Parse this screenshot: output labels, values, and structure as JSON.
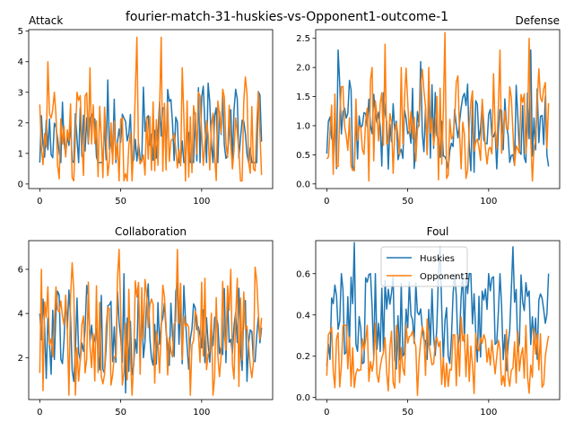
{
  "figure": {
    "suptitle": "fourier-match-31-huskies-vs-Opponent1-outcome-1"
  },
  "colors": {
    "huskies": "#1f77b4",
    "opponent": "#ff7f0e",
    "axis": "#000000",
    "legend_border": "#cccccc"
  },
  "legend": {
    "entries": [
      "Huskies",
      "Opponent1"
    ],
    "placement": "upper center of Foul panel"
  },
  "chart_data": [
    {
      "type": "line",
      "title": "Attack",
      "title_align": "left",
      "x_range": [
        0,
        137
      ],
      "ylim": [
        -0.15,
        5.05
      ],
      "xticks": [
        0,
        50,
        100
      ],
      "yticks": [
        0,
        1,
        2,
        3,
        4,
        5
      ],
      "series": [
        {
          "name": "Huskies",
          "envelope": {
            "base": 1.6,
            "amp": 0.8,
            "min": 0.7,
            "max": 3.5
          },
          "spikes": [
            [
              42,
              3.4
            ],
            [
              101,
              3.2
            ],
            [
              104,
              3.3
            ],
            [
              121,
              3.1
            ]
          ]
        },
        {
          "name": "Opponent1",
          "envelope": {
            "base": 1.5,
            "amp": 0.9,
            "min": 0.1,
            "max": 3.0
          },
          "spikes": [
            [
              0,
              2.6
            ],
            [
              5,
              4.0
            ],
            [
              31,
              3.8
            ],
            [
              60,
              4.8
            ],
            [
              75,
              4.8
            ],
            [
              88,
              3.8
            ],
            [
              113,
              3.1
            ],
            [
              127,
              3.5
            ],
            [
              136,
              1.7
            ]
          ]
        }
      ]
    },
    {
      "type": "line",
      "title": "Defense",
      "title_align": "right",
      "x_range": [
        0,
        137
      ],
      "ylim": [
        -0.08,
        2.65
      ],
      "xticks": [
        0,
        50,
        100
      ],
      "yticks": [
        0.0,
        0.5,
        1.0,
        1.5,
        2.0,
        2.5
      ],
      "series": [
        {
          "name": "Huskies",
          "envelope": {
            "base": 1.0,
            "amp": 0.45,
            "min": 0.2,
            "max": 2.0
          },
          "spikes": [
            [
              7,
              2.3
            ],
            [
              58,
              2.1
            ],
            [
              126,
              2.3
            ],
            [
              137,
              0.3
            ]
          ]
        },
        {
          "name": "Opponent1",
          "envelope": {
            "base": 1.05,
            "amp": 0.55,
            "min": 0.05,
            "max": 2.0
          },
          "spikes": [
            [
              36,
              2.4
            ],
            [
              73,
              2.6
            ],
            [
              125,
              2.5
            ],
            [
              107,
              2.3
            ],
            [
              26,
              0.05
            ]
          ]
        }
      ]
    },
    {
      "type": "line",
      "title": "Collaboration",
      "title_align": "center",
      "x_range": [
        0,
        137
      ],
      "ylim": [
        0.1,
        7.3
      ],
      "xticks": [
        0,
        50,
        100
      ],
      "yticks": [
        2,
        4,
        6
      ],
      "series": [
        {
          "name": "Huskies",
          "envelope": {
            "base": 3.3,
            "amp": 1.2,
            "min": 0.4,
            "max": 5.4
          },
          "spikes": [
            [
              52,
              5.8
            ],
            [
              0,
              4.0
            ],
            [
              53,
              0.4
            ]
          ]
        },
        {
          "name": "Opponent1",
          "envelope": {
            "base": 3.0,
            "amp": 1.6,
            "min": 0.3,
            "max": 6.0
          },
          "spikes": [
            [
              1,
              6.0
            ],
            [
              2,
              0.5
            ],
            [
              20,
              6.3
            ],
            [
              49,
              6.9
            ],
            [
              85,
              6.9
            ],
            [
              133,
              6.1
            ],
            [
              137,
              3.8
            ]
          ]
        }
      ]
    },
    {
      "type": "line",
      "title": "Foul",
      "title_align": "center",
      "x_range": [
        0,
        137
      ],
      "ylim": [
        -0.01,
        0.76
      ],
      "xticks": [
        0,
        50,
        100
      ],
      "yticks": [
        0.0,
        0.2,
        0.4,
        0.6
      ],
      "series": [
        {
          "name": "Huskies",
          "envelope": {
            "base": 0.4,
            "amp": 0.15,
            "min": 0.1,
            "max": 0.6
          },
          "spikes": [
            [
              17,
              0.75
            ],
            [
              70,
              0.73
            ],
            [
              115,
              0.73
            ],
            [
              0,
              0.15
            ]
          ]
        },
        {
          "name": "Opponent1",
          "envelope": {
            "base": 0.2,
            "amp": 0.1,
            "min": 0.01,
            "max": 0.35
          },
          "spikes": [
            [
              30,
              0.36
            ],
            [
              62,
              0.38
            ],
            [
              83,
              0.39
            ],
            [
              133,
              0.05
            ],
            [
              56,
              0.01
            ]
          ]
        }
      ]
    }
  ]
}
